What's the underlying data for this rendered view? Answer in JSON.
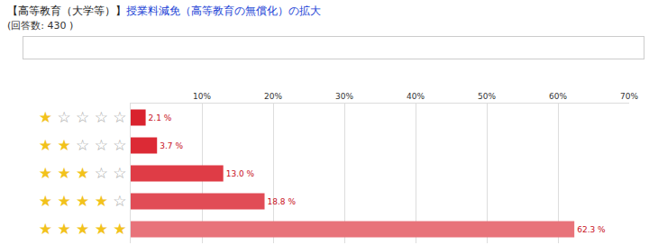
{
  "chart_data": {
    "type": "bar",
    "title": [
      "【高等教育（大学等）】",
      "授業料減免（高等教育の無償化）の拡大"
    ],
    "subtitle": "(回答数: 430 )",
    "orientation": "horizontal",
    "categories": [
      "★☆☆☆☆",
      "★★☆☆☆",
      "★★★☆☆",
      "★★★★☆",
      "★★★★★"
    ],
    "values": [
      2.1,
      3.7,
      13.0,
      18.8,
      62.3
    ],
    "value_labels": [
      "2.1 %",
      "3.7 %",
      "13.0 %",
      "18.8 %",
      "62.3 %"
    ],
    "data_labels": true,
    "colors": [
      "#d9232e",
      "#dc2a35",
      "#df3c46",
      "#e14c56",
      "#e8737a"
    ],
    "xlim": [
      0,
      70
    ],
    "xticks": [
      {
        "value": 10,
        "label": "10%"
      },
      {
        "value": 20,
        "label": "20%"
      },
      {
        "value": 30,
        "label": "30%"
      },
      {
        "value": 40,
        "label": "40%"
      },
      {
        "value": 50,
        "label": "50%"
      },
      {
        "value": 60,
        "label": "60%"
      },
      {
        "value": 70,
        "label": "70%"
      }
    ],
    "grid": true
  }
}
